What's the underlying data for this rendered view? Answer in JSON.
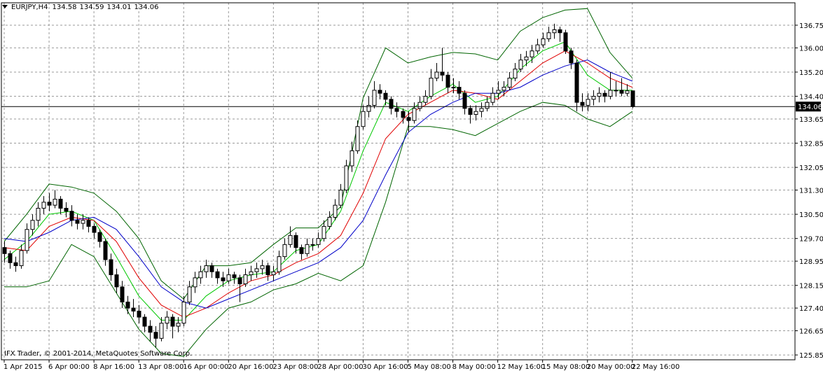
{
  "chart_data": {
    "type": "candlestick",
    "title": "EURJPY,H4",
    "annotation": "IFX Trader, © 2001-2014, MetaQuotes Software Corp.",
    "ylim": [
      125.69,
      137.49
    ],
    "yticks": [
      136.75,
      {
        "value": 136,
        "label": "136.00"
      },
      {
        "value": 135.2,
        "label": "135.20"
      },
      {
        "value": 134.4,
        "label": "134.40"
      },
      133.65,
      132.85,
      132.05,
      {
        "value": 131.3,
        "label": "131.30"
      },
      {
        "value": 130.5,
        "label": "130.50"
      },
      {
        "value": 129.7,
        "label": "129.70"
      },
      128.95,
      128.15,
      {
        "value": 127.4,
        "label": "127.40"
      },
      126.65,
      125.85
    ],
    "xlim": [
      -0.5,
      141
    ],
    "xticks": [
      {
        "value": 0,
        "label": "1 Apr 2015"
      },
      {
        "value": 8,
        "label": "6 Apr 00:00"
      },
      {
        "value": 16,
        "label": "8 Apr 16:00"
      },
      {
        "value": 24,
        "label": "13 Apr 08:00"
      },
      {
        "value": 32,
        "label": "16 Apr 00:00"
      },
      {
        "value": 40,
        "label": "20 Apr 16:00"
      },
      {
        "value": 48,
        "label": "23 Apr 08:00"
      },
      {
        "value": 56,
        "label": "28 Apr 00:00"
      },
      {
        "value": 64,
        "label": "30 Apr 16:00"
      },
      {
        "value": 72,
        "label": "5 May 08:00"
      },
      {
        "value": 80,
        "label": "8 May 00:00"
      },
      {
        "value": 88,
        "label": "12 May 16:00"
      },
      {
        "value": 96,
        "label": "15 May 08:00"
      },
      {
        "value": 104,
        "label": "20 May 00:00"
      },
      {
        "value": 112,
        "label": "22 May 16:00"
      }
    ],
    "grid": true,
    "up_color": "#ffffff",
    "down_color": "#000000",
    "ohlc": [
      [
        129.4,
        129.6,
        128.9,
        129.2
      ],
      [
        129.2,
        129.3,
        128.7,
        128.9
      ],
      [
        128.9,
        129.1,
        128.6,
        128.8
      ],
      [
        128.8,
        129.5,
        128.7,
        129.3
      ],
      [
        129.3,
        130.2,
        129.2,
        130.0
      ],
      [
        130.0,
        130.5,
        129.8,
        130.3
      ],
      [
        130.3,
        130.9,
        130.1,
        130.7
      ],
      [
        130.7,
        131.1,
        130.5,
        130.9
      ],
      [
        130.9,
        131.2,
        130.6,
        130.8
      ],
      [
        130.8,
        131.3,
        130.7,
        131.0
      ],
      [
        131.0,
        131.1,
        130.5,
        130.7
      ],
      [
        130.7,
        130.9,
        130.4,
        130.6
      ],
      [
        130.6,
        130.8,
        130.1,
        130.3
      ],
      [
        130.3,
        130.5,
        130.0,
        130.2
      ],
      [
        130.2,
        130.5,
        130.0,
        130.3
      ],
      [
        130.3,
        130.4,
        129.9,
        130.1
      ],
      [
        130.1,
        130.2,
        129.7,
        129.9
      ],
      [
        129.9,
        130.0,
        129.4,
        129.6
      ],
      [
        129.6,
        129.7,
        128.8,
        129.0
      ],
      [
        129.0,
        129.2,
        128.3,
        128.5
      ],
      [
        128.5,
        128.7,
        127.9,
        128.1
      ],
      [
        128.1,
        128.3,
        127.4,
        127.6
      ],
      [
        127.6,
        127.8,
        127.2,
        127.4
      ],
      [
        127.4,
        127.7,
        127.1,
        127.3
      ],
      [
        127.3,
        127.5,
        126.9,
        127.1
      ],
      [
        127.1,
        127.2,
        126.6,
        126.8
      ],
      [
        126.8,
        127.0,
        126.3,
        126.6
      ],
      [
        126.6,
        126.8,
        126.1,
        126.4
      ],
      [
        126.4,
        127.1,
        126.3,
        126.9
      ],
      [
        126.9,
        127.3,
        126.7,
        127.1
      ],
      [
        127.1,
        127.2,
        126.4,
        126.8
      ],
      [
        126.8,
        127.1,
        126.6,
        126.9
      ],
      [
        126.9,
        127.8,
        126.8,
        127.6
      ],
      [
        127.6,
        128.3,
        127.5,
        128.1
      ],
      [
        128.1,
        128.6,
        127.9,
        128.4
      ],
      [
        128.4,
        128.8,
        128.2,
        128.6
      ],
      [
        128.6,
        129.0,
        128.4,
        128.8
      ],
      [
        128.8,
        128.9,
        128.4,
        128.6
      ],
      [
        128.6,
        128.7,
        128.2,
        128.4
      ],
      [
        128.4,
        128.6,
        128.1,
        128.3
      ],
      [
        128.3,
        128.7,
        128.2,
        128.5
      ],
      [
        128.5,
        128.6,
        128.2,
        128.4
      ],
      [
        128.4,
        128.5,
        127.6,
        128.2
      ],
      [
        128.2,
        128.7,
        128.1,
        128.5
      ],
      [
        128.5,
        128.8,
        128.3,
        128.6
      ],
      [
        128.6,
        128.9,
        128.4,
        128.7
      ],
      [
        128.7,
        129.0,
        128.5,
        128.8
      ],
      [
        128.8,
        128.9,
        128.3,
        128.5
      ],
      [
        128.5,
        128.8,
        128.3,
        128.6
      ],
      [
        128.6,
        129.3,
        128.5,
        129.1
      ],
      [
        129.1,
        129.7,
        129.0,
        129.5
      ],
      [
        129.5,
        130.1,
        129.4,
        129.8
      ],
      [
        129.8,
        129.9,
        129.2,
        129.4
      ],
      [
        129.4,
        129.5,
        129.0,
        129.2
      ],
      [
        129.2,
        129.7,
        129.1,
        129.5
      ],
      [
        129.5,
        129.7,
        129.3,
        129.5
      ],
      [
        129.5,
        129.9,
        129.4,
        129.7
      ],
      [
        129.7,
        130.3,
        129.6,
        130.1
      ],
      [
        130.1,
        130.6,
        130.0,
        130.4
      ],
      [
        130.4,
        131.0,
        130.3,
        130.8
      ],
      [
        130.8,
        131.5,
        130.7,
        131.3
      ],
      [
        131.3,
        132.3,
        131.2,
        132.1
      ],
      [
        132.1,
        132.9,
        131.9,
        132.6
      ],
      [
        132.6,
        133.6,
        132.5,
        133.4
      ],
      [
        133.4,
        134.1,
        133.3,
        133.9
      ],
      [
        133.9,
        134.4,
        133.7,
        134.1
      ],
      [
        134.1,
        134.9,
        134.0,
        134.6
      ],
      [
        134.6,
        134.8,
        134.3,
        134.5
      ],
      [
        134.5,
        134.6,
        134.1,
        134.3
      ],
      [
        134.3,
        134.4,
        133.8,
        134.0
      ],
      [
        134.0,
        134.2,
        133.7,
        133.9
      ],
      [
        133.9,
        134.0,
        133.5,
        133.7
      ],
      [
        133.7,
        133.9,
        133.2,
        133.6
      ],
      [
        133.6,
        134.2,
        133.5,
        134.0
      ],
      [
        134.0,
        134.4,
        133.9,
        134.2
      ],
      [
        134.2,
        134.6,
        134.1,
        134.4
      ],
      [
        134.4,
        135.3,
        134.3,
        135.0
      ],
      [
        135.0,
        135.5,
        134.9,
        135.2
      ],
      [
        135.2,
        136.0,
        134.9,
        135.1
      ],
      [
        135.1,
        135.2,
        134.5,
        134.7
      ],
      [
        134.7,
        135.0,
        134.5,
        134.7
      ],
      [
        134.7,
        134.9,
        134.3,
        134.5
      ],
      [
        134.5,
        134.6,
        133.8,
        134.0
      ],
      [
        134.0,
        134.1,
        133.5,
        133.8
      ],
      [
        133.8,
        134.1,
        133.6,
        133.9
      ],
      [
        133.9,
        134.2,
        133.7,
        134.0
      ],
      [
        134.0,
        134.4,
        133.9,
        134.2
      ],
      [
        134.2,
        134.7,
        134.1,
        134.5
      ],
      [
        134.5,
        134.9,
        134.3,
        134.6
      ],
      [
        134.6,
        134.9,
        134.4,
        134.7
      ],
      [
        134.7,
        135.2,
        134.6,
        135.0
      ],
      [
        135.0,
        135.5,
        134.9,
        135.3
      ],
      [
        135.3,
        135.8,
        135.2,
        135.6
      ],
      [
        135.6,
        135.9,
        135.4,
        135.7
      ],
      [
        135.7,
        136.1,
        135.5,
        135.9
      ],
      [
        135.9,
        136.3,
        135.8,
        136.1
      ],
      [
        136.1,
        136.5,
        136.0,
        136.3
      ],
      [
        136.3,
        136.7,
        136.2,
        136.5
      ],
      [
        136.5,
        136.8,
        136.3,
        136.6
      ],
      [
        136.6,
        136.7,
        136.2,
        136.5
      ],
      [
        136.5,
        136.6,
        135.8,
        135.9
      ],
      [
        135.9,
        136.0,
        135.3,
        135.5
      ],
      [
        135.5,
        135.6,
        133.9,
        134.2
      ],
      [
        134.2,
        134.5,
        133.9,
        134.1
      ],
      [
        134.1,
        134.5,
        133.9,
        134.3
      ],
      [
        134.3,
        134.6,
        134.1,
        134.4
      ],
      [
        134.4,
        134.7,
        134.2,
        134.5
      ],
      [
        134.5,
        134.6,
        134.2,
        134.4
      ],
      [
        134.4,
        135.2,
        134.3,
        134.6
      ],
      [
        134.6,
        134.9,
        134.4,
        134.6
      ],
      [
        134.6,
        135.0,
        134.4,
        134.5
      ],
      [
        134.5,
        134.8,
        134.4,
        134.58
      ],
      [
        134.58,
        134.59,
        134.01,
        134.06
      ]
    ],
    "x": [
      0,
      4,
      8,
      12,
      16,
      20,
      24,
      28,
      32,
      36,
      40,
      44,
      48,
      52,
      56,
      60,
      64,
      68,
      72,
      76,
      80,
      84,
      88,
      92,
      96,
      100,
      104,
      108,
      112
    ],
    "series": [
      {
        "color": "#006400",
        "values": [
          129.6,
          130.5,
          131.5,
          131.4,
          131.2,
          130.6,
          129.7,
          128.3,
          127.7,
          128.8,
          128.8,
          128.9,
          129.5,
          130.05,
          130.05,
          130.75,
          134.35,
          136.0,
          135.5,
          135.7,
          135.85,
          135.8,
          135.6,
          136.55,
          137.0,
          137.25,
          137.3,
          135.85,
          135.0
        ]
      },
      {
        "color": "#006400",
        "values": [
          128.1,
          128.1,
          128.3,
          129.5,
          129.1,
          127.9,
          126.7,
          125.9,
          125.8,
          126.7,
          127.4,
          127.6,
          128.0,
          128.2,
          128.55,
          128.3,
          128.8,
          130.9,
          133.4,
          133.4,
          133.3,
          133.1,
          133.5,
          133.9,
          134.2,
          134.1,
          133.65,
          133.4,
          133.9
        ]
      },
      {
        "color": "#00c800",
        "values": [
          129.0,
          129.6,
          130.5,
          130.6,
          130.3,
          129.1,
          127.8,
          127.0,
          127.0,
          127.8,
          128.3,
          128.5,
          128.6,
          129.3,
          129.5,
          130.6,
          132.6,
          134.2,
          133.9,
          134.4,
          134.8,
          134.2,
          134.4,
          135.3,
          135.9,
          136.2,
          135.1,
          134.6,
          134.6
        ]
      },
      {
        "color": "#e00000",
        "values": [
          129.4,
          129.3,
          130.1,
          130.4,
          130.3,
          129.6,
          128.4,
          127.5,
          127.1,
          127.4,
          127.9,
          128.3,
          128.5,
          128.9,
          129.2,
          129.8,
          131.2,
          133.0,
          133.8,
          134.2,
          134.6,
          134.5,
          134.3,
          134.9,
          135.5,
          135.9,
          135.5,
          135.0,
          134.7
        ]
      },
      {
        "color": "#0000c8",
        "values": [
          129.7,
          129.6,
          129.9,
          130.3,
          130.4,
          130.0,
          129.1,
          128.1,
          127.6,
          127.4,
          127.7,
          128.0,
          128.3,
          128.6,
          128.9,
          129.4,
          130.3,
          131.8,
          133.2,
          133.8,
          134.2,
          134.5,
          134.5,
          134.7,
          135.1,
          135.4,
          135.6,
          135.2,
          134.9
        ]
      }
    ]
  }
}
